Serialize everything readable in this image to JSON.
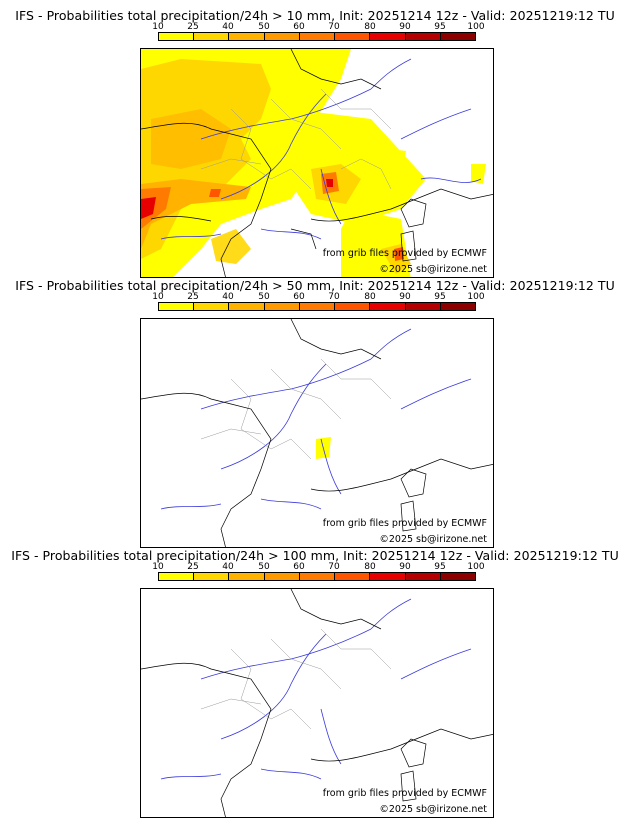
{
  "colorbar": {
    "labels": [
      "10",
      "25",
      "40",
      "50",
      "60",
      "70",
      "80",
      "90",
      "95",
      "100"
    ],
    "colors": [
      "#ffff00",
      "#ffd700",
      "#ffb300",
      "#ff9900",
      "#ff7a00",
      "#ff5500",
      "#e60000",
      "#b40000",
      "#8c0000",
      "#5a0000"
    ]
  },
  "credits": {
    "source": "from grib files provided by ECMWF",
    "copyright": "©2025 sb@irizone.net"
  },
  "panels": [
    {
      "title": "IFS - Probabilities total precipitation/24h > 10 mm, Init: 20251214 12z - Valid: 20251219:12 TU",
      "threshold": "10 mm"
    },
    {
      "title": "IFS - Probabilities total precipitation/24h > 50 mm, Init: 20251214 12z - Valid: 20251219:12 TU",
      "threshold": "50 mm"
    },
    {
      "title": "IFS - Probabilities total precipitation/24h > 100 mm, Init: 20251214 12z - Valid: 20251219:12 TU",
      "threshold": "100 mm"
    }
  ]
}
